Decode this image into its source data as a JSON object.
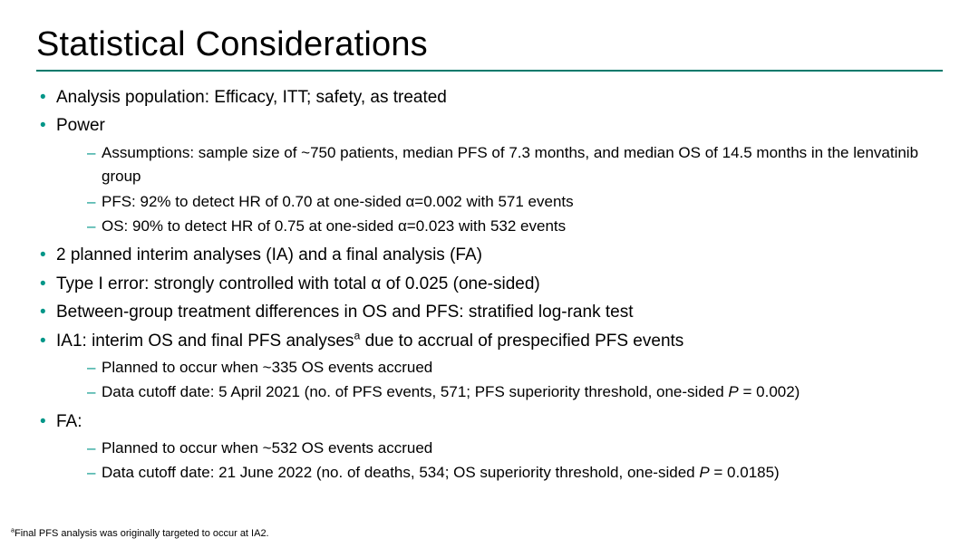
{
  "accent_color": "#009688",
  "rule_color": "#00796b",
  "background_color": "#ffffff",
  "text_color": "#000000",
  "title": "Statistical Considerations",
  "bullets": {
    "b1": "Analysis population: Efficacy, ITT; safety, as treated",
    "b2": "Power",
    "b2_1": "Assumptions: sample size of ~750 patients, median PFS of 7.3 months, and median OS of 14.5 months in the lenvatinib group",
    "b2_2": "PFS: 92% to detect HR of 0.70 at one-sided α=0.002 with 571 events",
    "b2_3": "OS: 90% to detect HR of 0.75 at one-sided α=0.023 with 532 events",
    "b3": "2 planned interim analyses (IA) and a final analysis (FA)",
    "b4": "Type I error: strongly controlled with total α of 0.025 (one-sided)",
    "b5": "Between-group treatment differences in OS and PFS: stratified log-rank test",
    "b6_prefix": "IA1: interim OS and final PFS analyses",
    "b6_sup": "a",
    "b6_suffix": " due to accrual of prespecified PFS events",
    "b6_1": "Planned to occur when ~335 OS events accrued",
    "b6_2a": "Data cutoff date: 5 April 2021 (no. of PFS events, 571; PFS superiority threshold, one-sided ",
    "b6_2p": "P",
    "b6_2b": " = 0.002)",
    "b7": "FA:",
    "b7_1": "Planned to occur when ~532 OS events accrued",
    "b7_2a": "Data cutoff date: 21 June 2022 (no. of deaths, 534; OS superiority threshold, one-sided ",
    "b7_2p": "P",
    "b7_2b": " = 0.0185)"
  },
  "footnote_sup": "a",
  "footnote_text": "Final PFS analysis was originally targeted to occur at IA2."
}
